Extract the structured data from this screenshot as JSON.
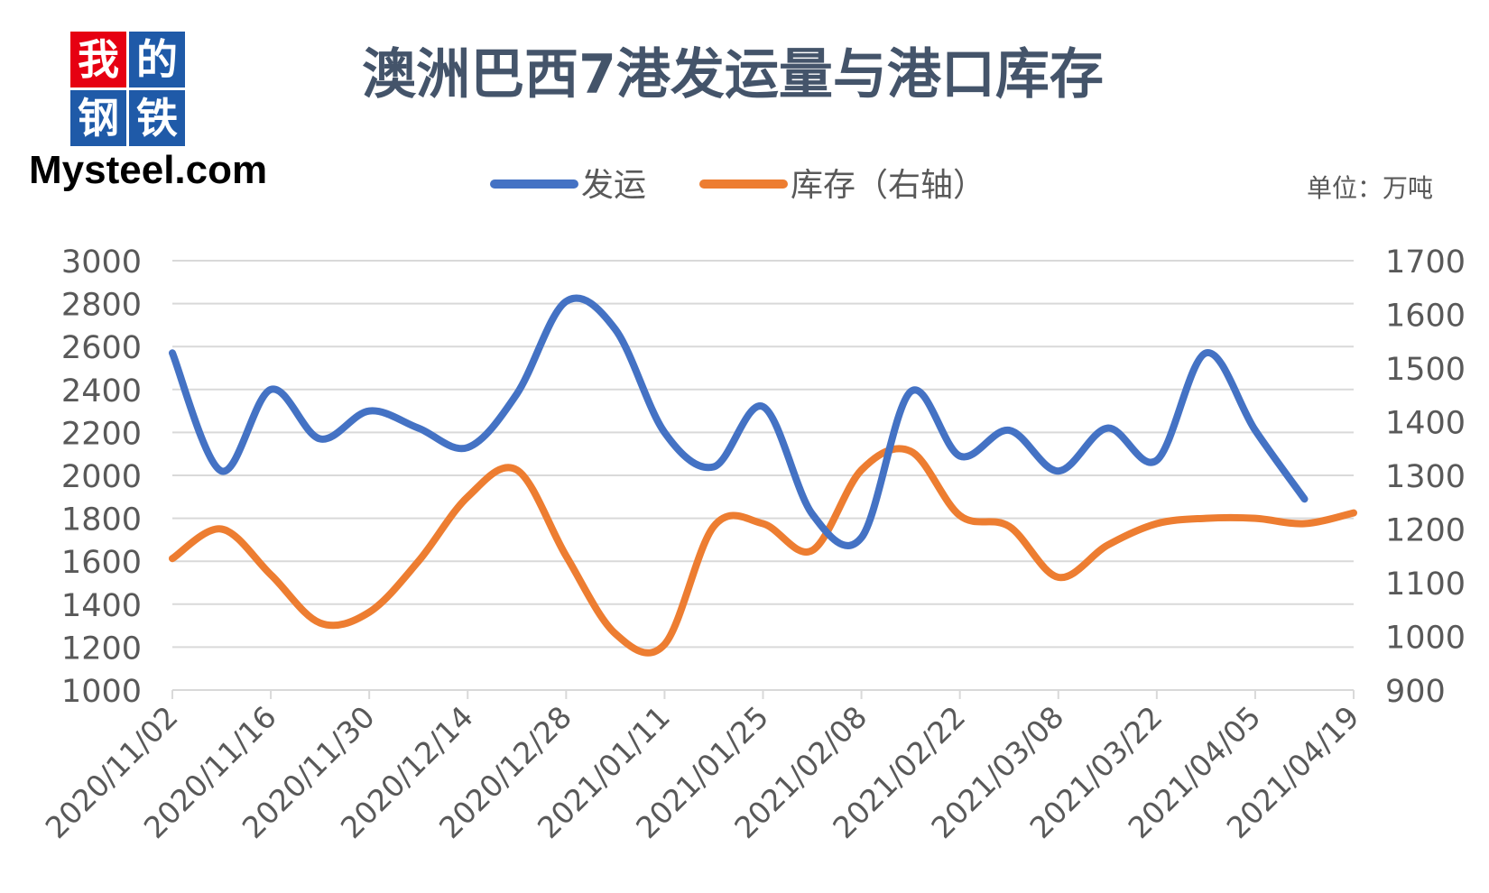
{
  "logo": {
    "chars": [
      "我",
      "的",
      "钢",
      "铁"
    ],
    "text": "Mysteel.com",
    "colors": [
      "#E60012",
      "#1F5AA8",
      "#1F5AA8",
      "#1F5AA8"
    ]
  },
  "unit": "单位：万吨",
  "colors": {
    "shipments": "#4472C4",
    "inventory": "#ED7D31",
    "grid": "#D9D9D9",
    "text": "#595959",
    "title": "#44546A"
  },
  "chart_data": {
    "type": "line",
    "title": "澳洲巴西7港发运量与港口库存",
    "legend_position": "top",
    "grid": true,
    "x_tick_labels": [
      "2020/11/02",
      "2020/11/16",
      "2020/11/30",
      "2020/12/14",
      "2020/12/28",
      "2021/01/11",
      "2021/01/25",
      "2021/02/08",
      "2021/02/22",
      "2021/03/08",
      "2021/03/22",
      "2021/04/05",
      "2021/04/19"
    ],
    "y_left": {
      "min": 1000,
      "max": 3000,
      "ticks": [
        "3000",
        "2800",
        "2600",
        "2400",
        "2200",
        "2000",
        "1800",
        "1600",
        "1400",
        "1200",
        "1000"
      ]
    },
    "y_right": {
      "min": 900,
      "max": 1700,
      "ticks": [
        "1700",
        "1600",
        "1500",
        "1400",
        "1300",
        "1200",
        "1100",
        "1000",
        "900"
      ]
    },
    "series": [
      {
        "name": "发运",
        "axis": "left",
        "x": [
          "2020/11/02",
          "2020/11/09",
          "2020/11/16",
          "2020/11/23",
          "2020/11/30",
          "2020/12/07",
          "2020/12/14",
          "2020/12/21",
          "2020/12/28",
          "2021/01/04",
          "2021/01/11",
          "2021/01/18",
          "2021/01/25",
          "2021/02/01",
          "2021/02/08",
          "2021/02/15",
          "2021/02/22",
          "2021/03/01",
          "2021/03/08",
          "2021/03/15",
          "2021/03/22",
          "2021/03/29",
          "2021/04/05",
          "2021/04/12"
        ],
        "values": [
          2570,
          2020,
          2400,
          2170,
          2300,
          2220,
          2130,
          2380,
          2810,
          2680,
          2200,
          2040,
          2320,
          1820,
          1710,
          2390,
          2090,
          2210,
          2020,
          2220,
          2070,
          2570,
          2210,
          1890
        ]
      },
      {
        "name": "库存（右轴）",
        "axis": "right",
        "x": [
          "2020/11/02",
          "2020/11/09",
          "2020/11/16",
          "2020/11/23",
          "2020/11/30",
          "2020/12/07",
          "2020/12/14",
          "2020/12/21",
          "2020/12/28",
          "2021/01/04",
          "2021/01/11",
          "2021/01/18",
          "2021/01/25",
          "2021/02/01",
          "2021/02/08",
          "2021/02/15",
          "2021/02/22",
          "2021/03/01",
          "2021/03/08",
          "2021/03/15",
          "2021/03/22",
          "2021/03/29",
          "2021/04/05",
          "2021/04/12",
          "2021/04/19"
        ],
        "values": [
          1145,
          1200,
          1115,
          1025,
          1045,
          1140,
          1260,
          1310,
          1150,
          1005,
          985,
          1205,
          1210,
          1160,
          1310,
          1345,
          1225,
          1205,
          1110,
          1170,
          1210,
          1220,
          1220,
          1210,
          1230
        ]
      }
    ]
  }
}
